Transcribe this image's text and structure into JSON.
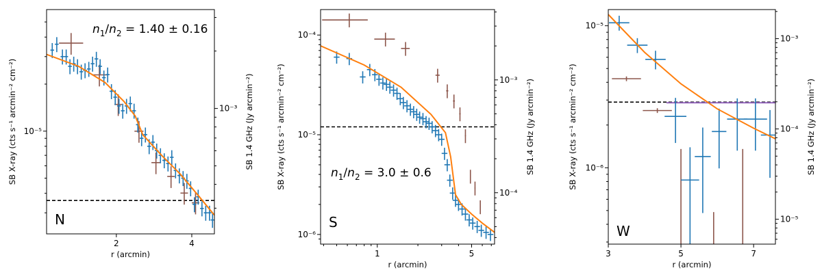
{
  "chart_data": [
    {
      "type": "scatter",
      "panel": "N",
      "annotation": "n1/n2 = 1.40 ± 0.16",
      "xlabel": "r (arcmin)",
      "ylabel": "SB X-ray (cts s⁻¹ arcmin⁻² cm⁻²)",
      "ylabel2": "SB 1.4 GHz (Jy arcmin⁻²)",
      "xscale": "linear",
      "yscale": "log",
      "y2scale": "log",
      "xlim": [
        0.15,
        4.6
      ],
      "ylim": [
        2.2e-06,
        6e-05
      ],
      "y2lim": [
        0.00022,
        0.0033
      ],
      "xticks": [
        2,
        4
      ],
      "yticks": [
        {
          "value": 1e-05,
          "label": "10⁻⁵"
        }
      ],
      "y2ticks": [
        {
          "value": 0.001,
          "label": "10⁻³"
        }
      ],
      "threshold_y": 3.6e-06,
      "xray": {
        "points": [
          [
            0.3,
            3.3e-05
          ],
          [
            0.42,
            3.6e-05
          ],
          [
            0.57,
            3e-05
          ],
          [
            0.67,
            3e-05
          ],
          [
            0.77,
            2.6e-05
          ],
          [
            0.87,
            2.7e-05
          ],
          [
            0.97,
            2.6e-05
          ],
          [
            1.07,
            2.4e-05
          ],
          [
            1.17,
            2.45e-05
          ],
          [
            1.27,
            2.5e-05
          ],
          [
            1.37,
            2.7e-05
          ],
          [
            1.47,
            2.9e-05
          ],
          [
            1.57,
            2.6e-05
          ],
          [
            1.67,
            2.2e-05
          ],
          [
            1.77,
            2.3e-05
          ],
          [
            1.87,
            1.8e-05
          ],
          [
            1.97,
            1.65e-05
          ],
          [
            2.07,
            1.45e-05
          ],
          [
            2.17,
            1.35e-05
          ],
          [
            2.27,
            1.45e-05
          ],
          [
            2.37,
            1.5e-05
          ],
          [
            2.47,
            1.35e-05
          ],
          [
            2.57,
            1.1e-05
          ],
          [
            2.67,
            9e-06
          ],
          [
            2.77,
            9.5e-06
          ],
          [
            2.87,
            8e-06
          ],
          [
            2.97,
            8.5e-06
          ],
          [
            3.07,
            7.5e-06
          ],
          [
            3.17,
            7e-06
          ],
          [
            3.27,
            6.5e-06
          ],
          [
            3.37,
            6.2e-06
          ],
          [
            3.47,
            6.8e-06
          ],
          [
            3.57,
            5.6e-06
          ],
          [
            3.67,
            5.2e-06
          ],
          [
            3.77,
            5e-06
          ],
          [
            3.87,
            4.8e-06
          ],
          [
            3.97,
            4.3e-06
          ],
          [
            4.07,
            3.4e-06
          ],
          [
            4.17,
            3.8e-06
          ],
          [
            4.27,
            3.2e-06
          ],
          [
            4.37,
            3e-06
          ],
          [
            4.47,
            3e-06
          ],
          [
            4.55,
            2.7e-06
          ]
        ],
        "xerr": 0.05,
        "yerr_frac": 0.11
      },
      "radio": {
        "points": [
          [
            0.8,
            0.0022,
            0.32
          ],
          [
            1.55,
            0.0015,
            0.2
          ],
          [
            2.05,
            0.00105,
            0.1
          ],
          [
            2.6,
            0.00076,
            0.12
          ],
          [
            3.05,
            0.00052,
            0.12
          ],
          [
            3.45,
            0.00044,
            0.1
          ],
          [
            3.8,
            0.00036,
            0.1
          ],
          [
            4.1,
            0.00032,
            0.1
          ]
        ],
        "yerr_frac": 0.13
      },
      "model": [
        [
          0.15,
          3.1e-05
        ],
        [
          1.0,
          2.6e-05
        ],
        [
          1.7,
          2.05e-05
        ],
        [
          2.2,
          1.55e-05
        ],
        [
          2.5,
          1.25e-05
        ],
        [
          2.7,
          9.5e-06
        ],
        [
          3.2,
          7e-06
        ],
        [
          3.7,
          5.3e-06
        ],
        [
          4.2,
          3.8e-06
        ],
        [
          4.6,
          2.9e-06
        ]
      ]
    },
    {
      "type": "scatter",
      "panel": "S",
      "annotation": "n1/n2 = 3.0 ± 0.6",
      "xlabel": "r (arcmin)",
      "ylabel": "SB X-ray (cts s⁻¹ arcmin⁻² cm⁻²)",
      "ylabel2": "SB 1.4 GHz (Jy arcmin⁻²)",
      "xscale": "log",
      "yscale": "log",
      "y2scale": "log",
      "xlim": [
        0.38,
        7.4
      ],
      "ylim": [
        8e-07,
        0.00018
      ],
      "y2lim": [
        3.5e-05,
        0.0042
      ],
      "xticks": [
        {
          "value": 1,
          "label": "1"
        },
        {
          "value": 5,
          "label": "5"
        }
      ],
      "yticks": [
        {
          "value": 1e-06,
          "label": "10⁻⁶"
        },
        {
          "value": 1e-05,
          "label": "10⁻⁵"
        },
        {
          "value": 0.0001,
          "label": "10⁻⁴"
        }
      ],
      "y2ticks": [
        {
          "value": 0.0001,
          "label": "10⁻⁴"
        },
        {
          "value": 0.001,
          "label": "10⁻³"
        }
      ],
      "threshold_y": 1.2e-05,
      "xray": {
        "points": [
          [
            0.5,
            6e-05
          ],
          [
            0.62,
            5.8e-05
          ],
          [
            0.78,
            3.8e-05
          ],
          [
            0.88,
            4.5e-05
          ],
          [
            0.96,
            4e-05
          ],
          [
            1.03,
            3.6e-05
          ],
          [
            1.1,
            3.3e-05
          ],
          [
            1.17,
            3.2e-05
          ],
          [
            1.24,
            3e-05
          ],
          [
            1.32,
            2.8e-05
          ],
          [
            1.4,
            2.6e-05
          ],
          [
            1.48,
            2.3e-05
          ],
          [
            1.56,
            2.1e-05
          ],
          [
            1.66,
            1.95e-05
          ],
          [
            1.76,
            1.8e-05
          ],
          [
            1.86,
            1.7e-05
          ],
          [
            1.96,
            1.6e-05
          ],
          [
            2.06,
            1.5e-05
          ],
          [
            2.18,
            1.45e-05
          ],
          [
            2.3,
            1.35e-05
          ],
          [
            2.42,
            1.3e-05
          ],
          [
            2.55,
            1.2e-05
          ],
          [
            2.7,
            1.1e-05
          ],
          [
            2.85,
            1e-05
          ],
          [
            3.0,
            9e-06
          ],
          [
            3.15,
            6.5e-06
          ],
          [
            3.3,
            5e-06
          ],
          [
            3.45,
            3.5e-06
          ],
          [
            3.62,
            2.6e-06
          ],
          [
            3.8,
            2.2e-06
          ],
          [
            4.0,
            2e-06
          ],
          [
            4.25,
            1.8e-06
          ],
          [
            4.5,
            1.6e-06
          ],
          [
            4.8,
            1.4e-06
          ],
          [
            5.1,
            1.3e-06
          ],
          [
            5.5,
            1.2e-06
          ],
          [
            5.9,
            1.1e-06
          ],
          [
            6.4,
            1.05e-06
          ],
          [
            6.9,
            1e-06
          ]
        ],
        "xerr_frac": 0.05,
        "yerr_frac": 0.14
      },
      "radio": {
        "points": [
          [
            0.62,
            0.0034,
            0.23
          ],
          [
            1.15,
            0.0023,
            0.2
          ],
          [
            1.62,
            0.0019,
            0.12
          ],
          [
            2.8,
            0.0011,
            0.1
          ],
          [
            3.3,
            0.0008,
            0.06
          ],
          [
            3.7,
            0.00065,
            0.06
          ],
          [
            4.1,
            0.0005,
            0.05
          ],
          [
            4.5,
            0.00032,
            0.04
          ],
          [
            4.9,
            0.00014,
            0.04
          ],
          [
            5.3,
            0.00011,
            0.04
          ],
          [
            5.8,
            7.5e-05,
            0.04
          ]
        ],
        "yerr_frac": 0.14
      },
      "model": [
        [
          0.38,
          7.8e-05
        ],
        [
          0.8,
          5e-05
        ],
        [
          1.5,
          3e-05
        ],
        [
          2.5,
          1.6e-05
        ],
        [
          3.2,
          1.05e-05
        ],
        [
          3.5,
          6e-06
        ],
        [
          3.8,
          2.5e-06
        ],
        [
          4.2,
          2e-06
        ],
        [
          5.0,
          1.6e-06
        ],
        [
          6.0,
          1.3e-06
        ],
        [
          7.4,
          1.05e-06
        ]
      ]
    },
    {
      "type": "scatter",
      "panel": "W",
      "annotation": "",
      "xlabel": "r (arcmin)",
      "ylabel": "SB X-ray (cts s⁻¹ arcmin⁻² cm⁻²)",
      "ylabel2": "SB 1.4 GHz (Jy arcmin⁻²)",
      "xscale": "linear",
      "yscale": "log",
      "y2scale": "log",
      "xlim": [
        3.0,
        7.6
      ],
      "ylim": [
        2.9e-07,
        1.3e-05
      ],
      "y2lim": [
        5.3e-06,
        0.0021
      ],
      "xticks": [
        3,
        5,
        7
      ],
      "yticks": [
        {
          "value": 1e-06,
          "label": "10⁻⁶"
        },
        {
          "value": 1e-05,
          "label": "10⁻⁵"
        }
      ],
      "y2ticks": [
        {
          "value": 1e-05,
          "label": "10⁻⁵"
        },
        {
          "value": 0.0001,
          "label": "10⁻⁴"
        },
        {
          "value": 0.001,
          "label": "10⁻³"
        }
      ],
      "threshold_y": 2.9e-06,
      "xray": {
        "points": [
          [
            3.3,
            1.05e-05,
            0.28,
            0.12
          ],
          [
            3.8,
            7.3e-06,
            0.28,
            0.12
          ],
          [
            4.3,
            5.8e-06,
            0.28,
            0.15
          ],
          [
            4.85,
            2.3e-06,
            0.3,
            0.35
          ],
          [
            5.25,
            8.2e-07,
            0.25,
            0.7
          ],
          [
            5.6,
            1.2e-06,
            0.22,
            0.6
          ],
          [
            6.05,
            1.8e-06,
            0.2,
            0.45
          ],
          [
            6.55,
            2.2e-06,
            0.28,
            0.4
          ],
          [
            7.05,
            2.2e-06,
            0.32,
            0.4
          ],
          [
            7.45,
            1.7e-06,
            0.25,
            0.5
          ]
        ]
      },
      "radio": {
        "points": [
          [
            3.5,
            0.00036,
            0.4,
            0.06
          ],
          [
            4.35,
            0.00016,
            0.4,
            0.06
          ]
        ],
        "uplims": [
          [
            5.0,
            5.3e-06,
            6e-05
          ],
          [
            5.9,
            5.3e-06,
            1.2e-05
          ],
          [
            6.7,
            5.3e-06,
            6e-05
          ]
        ]
      },
      "radio_model": [
        [
          4.6,
          0.000195
        ],
        [
          7.6,
          0.000195
        ]
      ],
      "model": [
        [
          3.0,
          1.2e-05
        ],
        [
          4.0,
          6.5e-06
        ],
        [
          5.0,
          3.9e-06
        ],
        [
          6.0,
          2.6e-06
        ],
        [
          7.0,
          1.9e-06
        ],
        [
          7.6,
          1.6e-06
        ]
      ]
    }
  ],
  "colors": {
    "xray": "#1f77b4",
    "radio": "#8c564b",
    "model": "#ff7f0e",
    "radio_model": "#9467bd",
    "threshold": "#000000"
  }
}
